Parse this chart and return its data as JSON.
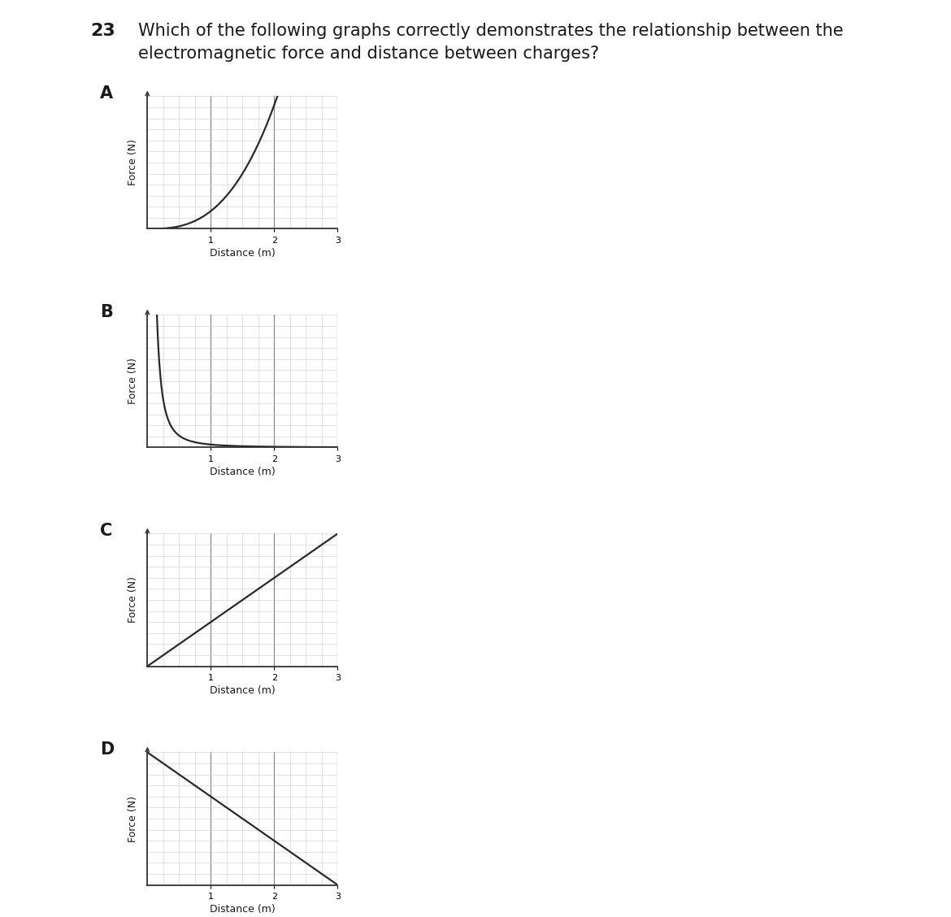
{
  "question_number": "23",
  "question_text": "Which of the following graphs correctly demonstrates the relationship between the\nelectromagnetic force and distance between charges?",
  "xlabel": "Distance (m)",
  "ylabel": "Force (N)",
  "page_bg": "#ffffff",
  "graph_bg": "#ffffff",
  "line_color": "#2a2a2a",
  "grid_major_color": "#888888",
  "grid_minor_color": "#cccccc",
  "text_color": "#1a1a1a",
  "spine_color": "#333333",
  "labels": [
    "A",
    "B",
    "C",
    "D"
  ],
  "xlim": [
    0,
    3
  ],
  "ylim": [
    0,
    1
  ],
  "graph_types": [
    "power_up",
    "inverse_sq",
    "linear_up",
    "linear_down"
  ],
  "question_fontsize": 15,
  "number_fontsize": 16,
  "label_fontsize": 15,
  "axis_label_fontsize": 9,
  "tick_fontsize": 8,
  "linewidth": 1.6
}
